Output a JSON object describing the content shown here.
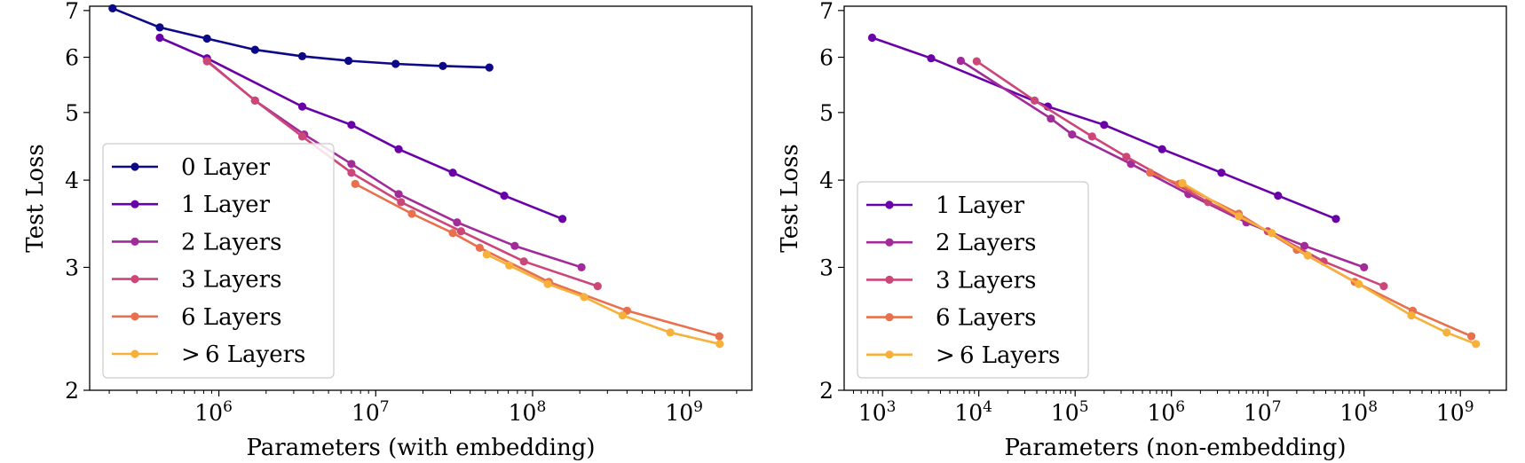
{
  "chart_data": [
    {
      "type": "line",
      "xscale": "log",
      "yscale": "log",
      "xlabel": "Parameters (with embedding)",
      "ylabel": "Test Loss",
      "xlim": [
        150000,
        2500000000
      ],
      "ylim": [
        2,
        7.1
      ],
      "xticks": [
        {
          "value": 1000000,
          "mant": "10",
          "exp": "6"
        },
        {
          "value": 10000000,
          "mant": "10",
          "exp": "7"
        },
        {
          "value": 100000000,
          "mant": "10",
          "exp": "8"
        },
        {
          "value": 1000000000,
          "mant": "10",
          "exp": "9"
        }
      ],
      "yticks": [
        {
          "value": 2,
          "label": "2"
        },
        {
          "value": 3,
          "label": "3"
        },
        {
          "value": 4,
          "label": "4"
        },
        {
          "value": 5,
          "label": "5"
        },
        {
          "value": 6,
          "label": "6"
        },
        {
          "value": 7,
          "label": "7"
        }
      ],
      "legend_position": "lower-left",
      "series": [
        {
          "name": "0 Layer",
          "color": "#0d0887",
          "x": [
            210000,
            420000,
            840000,
            1700000,
            3400000,
            6700000,
            13400000,
            26800000,
            53000000
          ],
          "y": [
            7.05,
            6.62,
            6.38,
            6.15,
            6.02,
            5.93,
            5.87,
            5.83,
            5.8
          ]
        },
        {
          "name": "1 Layer",
          "color": "#6a00a8",
          "x": [
            420000,
            840000,
            3400000,
            7000000,
            14000000,
            31000000,
            66000000,
            155000000
          ],
          "y": [
            6.4,
            5.98,
            5.1,
            4.8,
            4.43,
            4.1,
            3.8,
            3.52
          ]
        },
        {
          "name": "2 Layers",
          "color": "#a22b9a",
          "x": [
            840000,
            1700000,
            3500000,
            7000000,
            14000000,
            33000000,
            77000000,
            205000000
          ],
          "y": [
            5.93,
            5.2,
            4.65,
            4.22,
            3.82,
            3.48,
            3.22,
            3.0
          ]
        },
        {
          "name": "3 Layers",
          "color": "#cc4778",
          "x": [
            840000,
            1700000,
            3400000,
            7000000,
            14500000,
            35000000,
            88000000,
            260000000
          ],
          "y": [
            5.92,
            5.2,
            4.62,
            4.1,
            3.72,
            3.38,
            3.06,
            2.82
          ]
        },
        {
          "name": "6 Layers",
          "color": "#e8704c",
          "x": [
            7400000,
            17000000,
            31000000,
            46000000,
            127000000,
            400000000,
            1550000000
          ],
          "y": [
            3.95,
            3.58,
            3.36,
            3.2,
            2.86,
            2.6,
            2.39
          ]
        },
        {
          "name": "> 6 Layers",
          "color": "#f7b13b",
          "x": [
            51000000,
            71000000,
            125000000,
            213000000,
            375000000,
            755000000,
            1560000000
          ],
          "y": [
            3.13,
            3.02,
            2.84,
            2.72,
            2.56,
            2.42,
            2.33
          ]
        }
      ],
      "legend": [
        {
          "label": "0 Layer",
          "prefix": "",
          "color": "#0d0887"
        },
        {
          "label": "1 Layer",
          "prefix": "",
          "color": "#6a00a8"
        },
        {
          "label": "2 Layers",
          "prefix": "",
          "color": "#a22b9a"
        },
        {
          "label": "3 Layers",
          "prefix": "",
          "color": "#cc4778"
        },
        {
          "label": "6 Layers",
          "prefix": "",
          "color": "#e8704c"
        },
        {
          "label": "6 Layers",
          "prefix": ">",
          "color": "#f7b13b"
        }
      ]
    },
    {
      "type": "line",
      "xscale": "log",
      "yscale": "log",
      "xlabel": "Parameters (non-embedding)",
      "ylabel": "Test Loss",
      "xlim": [
        400,
        3000000000
      ],
      "ylim": [
        2,
        7.1
      ],
      "xticks": [
        {
          "value": 1000,
          "mant": "10",
          "exp": "3"
        },
        {
          "value": 10000,
          "mant": "10",
          "exp": "4"
        },
        {
          "value": 100000,
          "mant": "10",
          "exp": "5"
        },
        {
          "value": 1000000,
          "mant": "10",
          "exp": "6"
        },
        {
          "value": 10000000,
          "mant": "10",
          "exp": "7"
        },
        {
          "value": 100000000,
          "mant": "10",
          "exp": "8"
        },
        {
          "value": 1000000000,
          "mant": "10",
          "exp": "9"
        }
      ],
      "yticks": [
        {
          "value": 2,
          "label": "2"
        },
        {
          "value": 3,
          "label": "3"
        },
        {
          "value": 4,
          "label": "4"
        },
        {
          "value": 5,
          "label": "5"
        },
        {
          "value": 6,
          "label": "6"
        },
        {
          "value": 7,
          "label": "7"
        }
      ],
      "legend_position": "lower-left",
      "series": [
        {
          "name": "1 Layer",
          "color": "#6a00a8",
          "x": [
            780,
            3200,
            52000,
            200000,
            800000,
            3300000,
            12800000,
            51000000
          ],
          "y": [
            6.4,
            5.98,
            5.1,
            4.8,
            4.43,
            4.1,
            3.8,
            3.52
          ]
        },
        {
          "name": "2 Layers",
          "color": "#a22b9a",
          "x": [
            6500,
            56000,
            93000,
            380000,
            1500000,
            6000000,
            24000000,
            100000000
          ],
          "y": [
            5.93,
            4.9,
            4.65,
            4.22,
            3.82,
            3.48,
            3.22,
            3.0
          ]
        },
        {
          "name": "3 Layers",
          "color": "#cc4778",
          "x": [
            9500,
            38000,
            150000,
            340000,
            2400000,
            10000000,
            38000000,
            160000000
          ],
          "y": [
            5.92,
            5.2,
            4.62,
            4.32,
            3.72,
            3.38,
            3.06,
            2.82
          ]
        },
        {
          "name": "6 Layers",
          "color": "#e8704c",
          "x": [
            600000,
            1200000,
            5000000,
            20000000,
            80000000,
            320000000,
            1300000000
          ],
          "y": [
            4.1,
            3.95,
            3.58,
            3.18,
            2.86,
            2.6,
            2.39
          ]
        },
        {
          "name": "> 6 Layers",
          "color": "#f7b13b",
          "x": [
            1300000,
            5000000,
            11000000,
            26000000,
            88000000,
            310000000,
            720000000,
            1450000000
          ],
          "y": [
            3.96,
            3.55,
            3.36,
            3.12,
            2.84,
            2.56,
            2.42,
            2.33
          ]
        }
      ],
      "legend": [
        {
          "label": "1 Layer",
          "prefix": "",
          "color": "#6a00a8"
        },
        {
          "label": "2 Layers",
          "prefix": "",
          "color": "#a22b9a"
        },
        {
          "label": "3 Layers",
          "prefix": "",
          "color": "#cc4778"
        },
        {
          "label": "6 Layers",
          "prefix": "",
          "color": "#e8704c"
        },
        {
          "label": "6 Layers",
          "prefix": ">",
          "color": "#f7b13b"
        }
      ]
    }
  ]
}
